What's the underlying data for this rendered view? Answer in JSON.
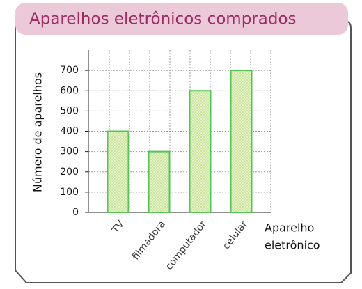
{
  "chart_data": {
    "type": "bar",
    "title": "Aparelhos eletrônicos comprados",
    "y_label": "Número de aparelhos",
    "x_label": [
      "Aparelho",
      "eletrônico"
    ],
    "categories": [
      "TV",
      "filmadora",
      "computador",
      "celular"
    ],
    "values": [
      400,
      300,
      600,
      700
    ],
    "color": "#d6ecb0",
    "edge_color": "#55c455",
    "ylim": [
      0,
      800
    ],
    "yticks": [
      0,
      100,
      200,
      300,
      400,
      500,
      600,
      700
    ],
    "grid": true
  }
}
